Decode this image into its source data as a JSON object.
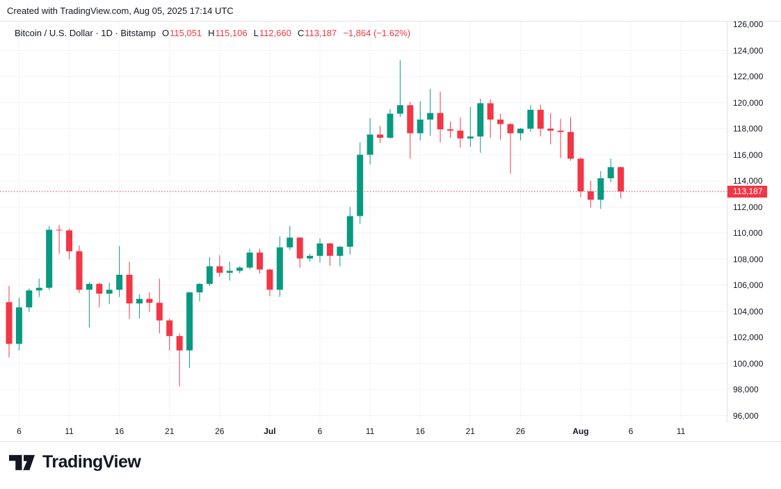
{
  "header": {
    "created_with": "Created with TradingView.com, Aug 05, 2025 17:14 UTC"
  },
  "legend": {
    "title": "Bitcoin / U.S. Dollar · 1D · Bitstamp",
    "ohlc": [
      {
        "label": "O",
        "value": "115,051"
      },
      {
        "label": "H",
        "value": "115,106"
      },
      {
        "label": "L",
        "value": "112,660"
      },
      {
        "label": "C",
        "value": "113,187"
      }
    ],
    "change": "−1,864 (−1.62%)"
  },
  "price_axis": {
    "labels": [
      {
        "label": "126,000",
        "price": 126000
      },
      {
        "label": "124,000",
        "price": 124000
      },
      {
        "label": "122,000",
        "price": 122000
      },
      {
        "label": "120,000",
        "price": 120000
      },
      {
        "label": "118,000",
        "price": 118000
      },
      {
        "label": "116,000",
        "price": 116000
      },
      {
        "label": "114,000",
        "price": 114000
      },
      {
        "label": "112,000",
        "price": 112000
      },
      {
        "label": "110,000",
        "price": 110000
      },
      {
        "label": "108,000",
        "price": 108000
      },
      {
        "label": "106,000",
        "price": 106000
      },
      {
        "label": "104,000",
        "price": 104000
      },
      {
        "label": "102,000",
        "price": 102000
      },
      {
        "label": "100,000",
        "price": 100000
      },
      {
        "label": "98,000",
        "price": 98000
      },
      {
        "label": "96,000",
        "price": 96000
      }
    ],
    "last_price_badge": "113,187"
  },
  "time_axis": {
    "ticks": [
      {
        "label": "6",
        "day": 1,
        "bold": false
      },
      {
        "label": "11",
        "day": 6,
        "bold": false
      },
      {
        "label": "16",
        "day": 11,
        "bold": false
      },
      {
        "label": "21",
        "day": 16,
        "bold": false
      },
      {
        "label": "26",
        "day": 21,
        "bold": false
      },
      {
        "label": "Jul",
        "day": 26,
        "bold": true
      },
      {
        "label": "6",
        "day": 31,
        "bold": false
      },
      {
        "label": "11",
        "day": 36,
        "bold": false
      },
      {
        "label": "16",
        "day": 41,
        "bold": false
      },
      {
        "label": "21",
        "day": 46,
        "bold": false
      },
      {
        "label": "26",
        "day": 51,
        "bold": false
      },
      {
        "label": "Aug",
        "day": 57,
        "bold": true
      },
      {
        "label": "6",
        "day": 62,
        "bold": false
      },
      {
        "label": "11",
        "day": 67,
        "bold": false
      }
    ]
  },
  "logo": {
    "text": "TradingView"
  },
  "colors": {
    "up": "#089981",
    "down": "#F23645",
    "grid": "#F0F3FA",
    "border": "#E0E3EB",
    "text": "#131722",
    "last_price_line": "#F23645",
    "badge_bg": "#F23645",
    "badge_text": "#FFFFFF",
    "background": "#FFFFFF"
  },
  "chart_data": {
    "type": "candlestick",
    "title": "Bitcoin / U.S. Dollar, 1D, Bitstamp",
    "symbol": "BTCUSD",
    "interval": "1D",
    "exchange": "Bitstamp",
    "ylabel": "Price (USD)",
    "ylim": [
      96000,
      126000
    ],
    "y_grid_step": 2000,
    "grid": true,
    "last_price": 113187,
    "last_price_line_style": "dotted",
    "x": [
      "2025-06-05",
      "2025-06-06",
      "2025-06-07",
      "2025-06-08",
      "2025-06-09",
      "2025-06-10",
      "2025-06-11",
      "2025-06-12",
      "2025-06-13",
      "2025-06-14",
      "2025-06-15",
      "2025-06-16",
      "2025-06-17",
      "2025-06-18",
      "2025-06-19",
      "2025-06-20",
      "2025-06-21",
      "2025-06-22",
      "2025-06-23",
      "2025-06-24",
      "2025-06-25",
      "2025-06-26",
      "2025-06-27",
      "2025-06-28",
      "2025-06-29",
      "2025-06-30",
      "2025-07-01",
      "2025-07-02",
      "2025-07-03",
      "2025-07-04",
      "2025-07-05",
      "2025-07-06",
      "2025-07-07",
      "2025-07-08",
      "2025-07-09",
      "2025-07-10",
      "2025-07-11",
      "2025-07-12",
      "2025-07-13",
      "2025-07-14",
      "2025-07-15",
      "2025-07-16",
      "2025-07-17",
      "2025-07-18",
      "2025-07-19",
      "2025-07-20",
      "2025-07-21",
      "2025-07-22",
      "2025-07-23",
      "2025-07-24",
      "2025-07-25",
      "2025-07-26",
      "2025-07-27",
      "2025-07-28",
      "2025-07-29",
      "2025-07-30",
      "2025-07-31",
      "2025-08-01",
      "2025-08-02",
      "2025-08-03",
      "2025-08-04",
      "2025-08-05"
    ],
    "open": [
      104700,
      101500,
      104300,
      105600,
      105800,
      110250,
      110200,
      108600,
      105650,
      106100,
      105350,
      105650,
      106800,
      104600,
      104950,
      104650,
      103300,
      102100,
      101000,
      105450,
      106100,
      107450,
      106950,
      107100,
      107350,
      108500,
      107200,
      105650,
      108900,
      109650,
      108050,
      108250,
      109200,
      108250,
      108950,
      111300,
      116000,
      117550,
      117300,
      119150,
      119800,
      117650,
      118700,
      119200,
      117950,
      117850,
      117250,
      117400,
      119950,
      118700,
      118350,
      117650,
      118000,
      119450,
      118000,
      117850,
      117750,
      115700,
      113200,
      112550,
      114200,
      115051
    ],
    "high": [
      105950,
      105050,
      105750,
      106500,
      110550,
      110600,
      110350,
      109050,
      106200,
      106200,
      106200,
      109000,
      107800,
      105300,
      105450,
      106500,
      103450,
      102300,
      105500,
      106150,
      108150,
      108300,
      107800,
      107450,
      108800,
      108800,
      107250,
      109750,
      110550,
      109700,
      108400,
      109600,
      109250,
      109000,
      112000,
      116950,
      118800,
      118200,
      119500,
      123250,
      120050,
      120100,
      121050,
      120850,
      118550,
      118850,
      119650,
      120300,
      120250,
      119150,
      118450,
      118050,
      119800,
      119850,
      119200,
      118750,
      118900,
      115800,
      114000,
      114750,
      115700,
      115106
    ],
    "low": [
      100450,
      101000,
      103950,
      105100,
      105650,
      108400,
      108000,
      105400,
      102750,
      104300,
      104550,
      105100,
      103400,
      103450,
      103950,
      102300,
      101000,
      98250,
      99650,
      104750,
      105950,
      106650,
      106350,
      106900,
      107200,
      106900,
      105150,
      105100,
      108700,
      107350,
      107800,
      107750,
      107500,
      107450,
      108350,
      110700,
      115250,
      116900,
      117250,
      118900,
      115700,
      117100,
      117450,
      116950,
      117300,
      116550,
      116600,
      116150,
      117300,
      117150,
      114550,
      117100,
      117750,
      117400,
      116800,
      115750,
      115550,
      112750,
      111950,
      111850,
      113900,
      112660
    ],
    "close": [
      101500,
      104300,
      105600,
      105800,
      110250,
      110200,
      108600,
      105650,
      106100,
      105350,
      105650,
      106800,
      104600,
      104950,
      104650,
      103300,
      102100,
      101000,
      105450,
      106100,
      107450,
      106950,
      107100,
      107350,
      108500,
      107200,
      105650,
      108900,
      109650,
      108050,
      108250,
      109200,
      108250,
      108950,
      111300,
      116000,
      117550,
      117300,
      119150,
      119800,
      117650,
      118700,
      119200,
      117950,
      117850,
      117250,
      117400,
      119950,
      118700,
      118350,
      117650,
      118000,
      119450,
      118000,
      117850,
      117750,
      115700,
      113200,
      112550,
      114200,
      115050,
      113187
    ]
  }
}
